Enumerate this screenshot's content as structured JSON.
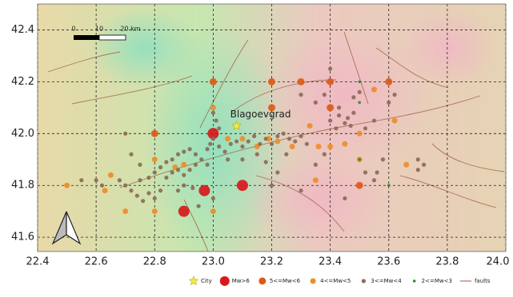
{
  "chart_data": {
    "type": "scatter",
    "xlim": [
      22.4,
      24.0
    ],
    "ylim": [
      41.545,
      42.5
    ],
    "xticks": [
      {
        "value": 22.4,
        "label": "22.4"
      },
      22.6,
      {
        "value": 22.8,
        "label": "22.8"
      },
      {
        "value": 23.0,
        "label": "23.0"
      },
      23.2,
      23.4,
      23.6,
      23.8,
      {
        "value": 24.0,
        "label": "24.0"
      }
    ],
    "yticks": [
      41.6,
      {
        "value": 41.8,
        "label": "41.8"
      },
      {
        "value": 42.0,
        "label": "42.0"
      },
      42.2,
      42.4
    ],
    "grid": true,
    "legend": "bottom",
    "annotation": "Blagoevgrad",
    "scale_bar": {
      "labels": [
        "0",
        "10",
        "20 km"
      ]
    },
    "faults": {
      "name": "faults",
      "color": "#9c5a3c"
    },
    "series": [
      {
        "name": "City",
        "marker": "star",
        "color": "#f2ea3c",
        "x": [
          23.08
        ],
        "y": [
          42.03
        ]
      },
      {
        "name": "Mw>6",
        "marker": "circle",
        "color": "#d7191c",
        "x": [
          23.0,
          22.97,
          23.1,
          22.9
        ],
        "y": [
          42.0,
          41.78,
          41.8,
          41.7
        ]
      },
      {
        "name": "5<=Mw<6",
        "marker": "circle",
        "color": "#dd5a16",
        "x": [
          22.8,
          23.0,
          23.2,
          23.3,
          23.4,
          23.6,
          23.2,
          23.4,
          23.5
        ],
        "y": [
          42.0,
          42.2,
          42.2,
          42.2,
          42.2,
          42.2,
          42.1,
          42.1,
          41.8
        ]
      },
      {
        "name": "4<=Mw<5",
        "marker": "circle",
        "color": "#f08c28",
        "x": [
          22.5,
          22.7,
          22.8,
          23.0,
          22.8,
          22.9,
          22.87,
          22.63,
          22.65,
          23.33,
          23.0,
          23.1,
          23.15,
          23.22,
          23.36,
          23.4,
          23.45,
          23.5,
          23.5,
          23.55,
          23.62,
          23.66,
          23.35,
          23.27,
          23.05,
          23.19
        ],
        "y": [
          41.8,
          41.7,
          41.7,
          41.7,
          41.9,
          41.88,
          41.87,
          41.78,
          41.84,
          42.03,
          42.1,
          41.98,
          41.95,
          41.97,
          41.95,
          41.95,
          41.96,
          41.9,
          42.0,
          42.17,
          42.05,
          41.88,
          41.82,
          41.95,
          41.98,
          41.98
        ]
      },
      {
        "name": "3<=Mw<4",
        "marker": "circle",
        "color": "#8b6b58",
        "x": [
          22.7,
          22.72,
          22.75,
          22.6,
          22.62,
          22.68,
          22.7,
          22.72,
          22.75,
          22.78,
          22.8,
          22.82,
          22.84,
          22.86,
          22.88,
          22.9,
          22.92,
          22.94,
          22.84,
          22.86,
          22.88,
          22.9,
          22.92,
          22.94,
          22.96,
          22.98,
          22.99,
          23.0,
          23.02,
          23.04,
          23.06,
          23.08,
          23.1,
          23.12,
          23.14,
          23.16,
          23.18,
          23.2,
          23.22,
          23.24,
          23.26,
          23.28,
          23.3,
          23.32,
          23.02,
          23.01,
          23.0,
          23.05,
          23.1,
          22.78,
          22.8,
          22.82,
          22.76,
          22.74,
          22.88,
          22.9,
          22.93,
          23.15,
          23.18,
          23.25,
          23.38,
          23.4,
          23.43,
          23.45,
          23.42,
          23.46,
          23.48,
          23.47,
          23.52,
          23.55,
          23.43,
          23.48,
          23.5,
          23.6,
          23.62,
          23.4,
          23.38,
          23.35,
          23.3,
          23.52,
          23.55,
          23.56,
          23.58,
          23.45,
          23.7,
          23.72,
          23.7,
          23.2,
          23.22,
          23.3,
          23.35,
          22.55,
          23.0,
          22.95,
          22.98
        ],
        "y": [
          42.0,
          41.92,
          41.88,
          41.82,
          41.8,
          41.82,
          41.8,
          41.78,
          41.82,
          41.83,
          41.85,
          41.87,
          41.89,
          41.9,
          41.92,
          41.93,
          41.94,
          41.92,
          41.83,
          41.85,
          41.86,
          41.84,
          41.86,
          41.88,
          41.9,
          41.94,
          41.96,
          41.98,
          41.95,
          41.93,
          41.96,
          41.97,
          41.95,
          41.97,
          41.99,
          41.96,
          41.98,
          41.96,
          41.99,
          42.0,
          41.98,
          41.97,
          41.99,
          41.96,
          42.02,
          42.05,
          42.08,
          41.9,
          41.9,
          41.77,
          41.75,
          41.78,
          41.74,
          41.76,
          41.78,
          41.8,
          41.79,
          41.92,
          41.89,
          41.92,
          41.92,
          42.05,
          42.07,
          42.04,
          42.02,
          42.06,
          42.08,
          42.03,
          42.02,
          42.05,
          42.1,
          42.14,
          42.16,
          42.12,
          42.15,
          42.25,
          42.15,
          42.12,
          42.15,
          41.85,
          41.82,
          41.85,
          41.9,
          41.75,
          41.9,
          41.88,
          41.86,
          41.8,
          41.85,
          41.78,
          41.88,
          41.82,
          41.75,
          41.72,
          41.88
        ]
      },
      {
        "name": "2<=Mw<3",
        "marker": "circle",
        "color": "#2e8b2e",
        "x": [
          23.5,
          23.5,
          23.6,
          23.5
        ],
        "y": [
          42.2,
          42.12,
          41.8,
          41.9
        ]
      }
    ]
  }
}
